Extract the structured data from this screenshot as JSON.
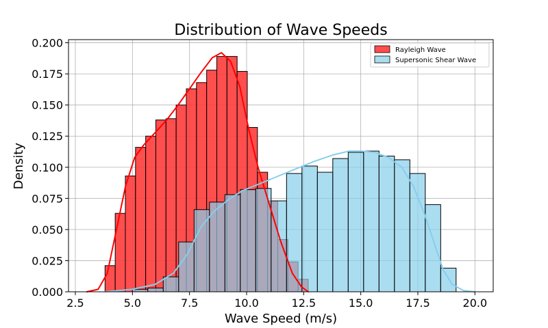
{
  "chart_data": {
    "type": "histogram",
    "title": "Distribution of Wave Speeds",
    "xlabel": "Wave Speed (m/s)",
    "ylabel": "Density",
    "xlim": [
      2.2,
      20.8
    ],
    "ylim": [
      0,
      0.2025
    ],
    "xticks": [
      2.5,
      5.0,
      7.5,
      10.0,
      12.5,
      15.0,
      17.5,
      20.0
    ],
    "xtick_labels": [
      "2.5",
      "5.0",
      "7.5",
      "10.0",
      "12.5",
      "15.0",
      "17.5",
      "20.0"
    ],
    "yticks": [
      0,
      0.025,
      0.05,
      0.075,
      0.1,
      0.125,
      0.15,
      0.175,
      0.2
    ],
    "ytick_labels": [
      "0.000",
      "0.025",
      "0.050",
      "0.075",
      "0.100",
      "0.125",
      "0.150",
      "0.175",
      "0.200"
    ],
    "grid": true,
    "legend_position": "top-right",
    "series": [
      {
        "name": "Rayleigh Wave",
        "color": "#ff0000",
        "bar_color": "#ff3b3b",
        "bin_start": 3.8,
        "bin_width": 0.445,
        "values": [
          0.021,
          0.063,
          0.093,
          0.116,
          0.125,
          0.138,
          0.139,
          0.15,
          0.163,
          0.168,
          0.178,
          0.189,
          0.189,
          0.177,
          0.132,
          0.096,
          0.073,
          0.042,
          0.024,
          0.01
        ],
        "kde": [
          [
            3.0,
            0.0
          ],
          [
            3.5,
            0.002
          ],
          [
            3.9,
            0.015
          ],
          [
            4.3,
            0.05
          ],
          [
            4.7,
            0.085
          ],
          [
            5.1,
            0.108
          ],
          [
            5.5,
            0.118
          ],
          [
            6.0,
            0.128
          ],
          [
            6.5,
            0.138
          ],
          [
            7.0,
            0.15
          ],
          [
            7.5,
            0.163
          ],
          [
            8.0,
            0.176
          ],
          [
            8.5,
            0.188
          ],
          [
            8.9,
            0.192
          ],
          [
            9.3,
            0.185
          ],
          [
            9.7,
            0.165
          ],
          [
            10.1,
            0.13
          ],
          [
            10.5,
            0.1
          ],
          [
            11.0,
            0.07
          ],
          [
            11.5,
            0.04
          ],
          [
            12.0,
            0.015
          ],
          [
            12.4,
            0.004
          ],
          [
            12.7,
            0.0
          ]
        ]
      },
      {
        "name": "Supersonic Shear Wave",
        "color": "#87ceeb",
        "bar_color": "#87ceeb",
        "bin_start": 5.0,
        "bin_width": 0.675,
        "values": [
          0.002,
          0.003,
          0.012,
          0.04,
          0.066,
          0.072,
          0.078,
          0.082,
          0.083,
          0.073,
          0.095,
          0.101,
          0.096,
          0.107,
          0.112,
          0.113,
          0.109,
          0.106,
          0.095,
          0.07,
          0.019
        ],
        "kde": [
          [
            3.8,
            0.0
          ],
          [
            5.0,
            0.002
          ],
          [
            6.0,
            0.006
          ],
          [
            6.8,
            0.015
          ],
          [
            7.4,
            0.03
          ],
          [
            8.0,
            0.052
          ],
          [
            8.6,
            0.065
          ],
          [
            9.2,
            0.074
          ],
          [
            9.8,
            0.081
          ],
          [
            10.6,
            0.087
          ],
          [
            11.4,
            0.093
          ],
          [
            12.2,
            0.099
          ],
          [
            13.0,
            0.105
          ],
          [
            13.8,
            0.11
          ],
          [
            14.5,
            0.113
          ],
          [
            15.0,
            0.113
          ],
          [
            15.6,
            0.112
          ],
          [
            16.2,
            0.108
          ],
          [
            16.8,
            0.1
          ],
          [
            17.3,
            0.085
          ],
          [
            17.8,
            0.062
          ],
          [
            18.2,
            0.04
          ],
          [
            18.6,
            0.018
          ],
          [
            19.0,
            0.006
          ],
          [
            19.5,
            0.001
          ],
          [
            20.0,
            0.0
          ]
        ]
      }
    ]
  }
}
